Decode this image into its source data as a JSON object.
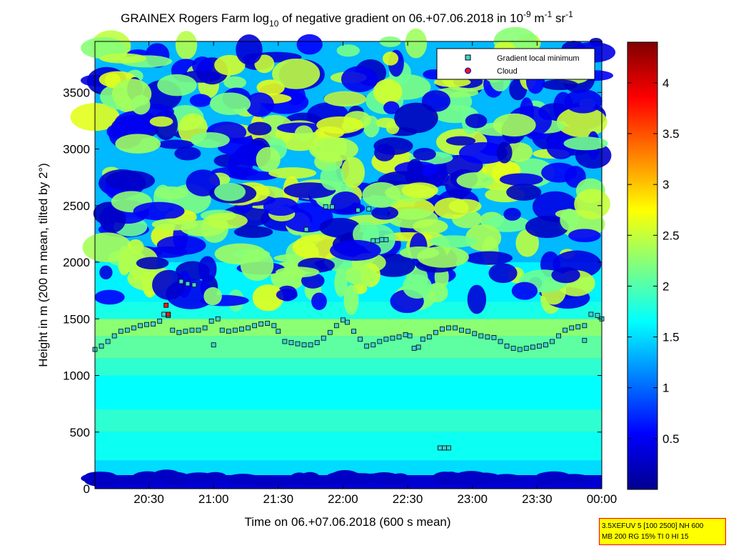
{
  "chart_data": {
    "type": "heatmap",
    "title": {
      "prefix": "GRAINEX Rogers Farm log",
      "sub": "10",
      "mid": " of negative gradient on 06.+07.06.2018 in 10",
      "sup1": "-9",
      "mid2": " m",
      "sup2": "-1",
      "mid3": " sr",
      "sup3": "-1"
    },
    "xlabel": "Time on 06.+07.06.2018 (600 s mean)",
    "ylabel": "Height in m (200 m mean, tilted by 2°)",
    "x_ticks": [
      "20:30",
      "21:00",
      "21:30",
      "22:00",
      "22:30",
      "23:00",
      "23:30",
      "00:00"
    ],
    "x_range_minutes": [
      1205,
      1440
    ],
    "y_ticks": [
      0,
      500,
      1000,
      1500,
      2000,
      2500,
      3000,
      3500
    ],
    "ylim": [
      0,
      3950
    ],
    "colorbar": {
      "colormap": "jet",
      "range": [
        0,
        4.4
      ],
      "ticks": [
        "0.5",
        "1",
        "1.5",
        "2",
        "2.5",
        "3",
        "3.5",
        "4"
      ]
    },
    "legend": {
      "placement": "top-right",
      "entries": [
        {
          "label": "Gradient local minimum",
          "marker": "square",
          "color": "#3fd3d3"
        },
        {
          "label": "Cloud",
          "marker": "circle",
          "color": "#e21a1a"
        }
      ]
    },
    "series": [
      {
        "name": "Gradient local minimum",
        "points": [
          [
            1205,
            1230
          ],
          [
            1208,
            1260
          ],
          [
            1211,
            1300
          ],
          [
            1214,
            1350
          ],
          [
            1217,
            1390
          ],
          [
            1220,
            1400
          ],
          [
            1223,
            1420
          ],
          [
            1226,
            1440
          ],
          [
            1229,
            1450
          ],
          [
            1232,
            1455
          ],
          [
            1235,
            1480
          ],
          [
            1237,
            1540
          ],
          [
            1239,
            1530
          ],
          [
            1241,
            1400
          ],
          [
            1244,
            1380
          ],
          [
            1247,
            1390
          ],
          [
            1250,
            1400
          ],
          [
            1253,
            1400
          ],
          [
            1256,
            1420
          ],
          [
            1259,
            1480
          ],
          [
            1262,
            1500
          ],
          [
            1264,
            1400
          ],
          [
            1267,
            1390
          ],
          [
            1270,
            1400
          ],
          [
            1273,
            1410
          ],
          [
            1276,
            1420
          ],
          [
            1279,
            1440
          ],
          [
            1282,
            1455
          ],
          [
            1285,
            1460
          ],
          [
            1288,
            1440
          ],
          [
            1290,
            1390
          ],
          [
            1293,
            1300
          ],
          [
            1296,
            1290
          ],
          [
            1299,
            1280
          ],
          [
            1302,
            1270
          ],
          [
            1305,
            1270
          ],
          [
            1308,
            1290
          ],
          [
            1311,
            1330
          ],
          [
            1314,
            1380
          ],
          [
            1317,
            1440
          ],
          [
            1320,
            1490
          ],
          [
            1322,
            1470
          ],
          [
            1325,
            1390
          ],
          [
            1328,
            1320
          ],
          [
            1331,
            1260
          ],
          [
            1334,
            1270
          ],
          [
            1337,
            1300
          ],
          [
            1340,
            1320
          ],
          [
            1343,
            1330
          ],
          [
            1346,
            1340
          ],
          [
            1349,
            1360
          ],
          [
            1351,
            1350
          ],
          [
            1353,
            1240
          ],
          [
            1355,
            1250
          ],
          [
            1357,
            1320
          ],
          [
            1360,
            1340
          ],
          [
            1363,
            1380
          ],
          [
            1366,
            1410
          ],
          [
            1369,
            1420
          ],
          [
            1372,
            1420
          ],
          [
            1375,
            1400
          ],
          [
            1378,
            1390
          ],
          [
            1381,
            1370
          ],
          [
            1384,
            1350
          ],
          [
            1387,
            1340
          ],
          [
            1390,
            1335
          ],
          [
            1393,
            1300
          ],
          [
            1396,
            1260
          ],
          [
            1399,
            1240
          ],
          [
            1402,
            1230
          ],
          [
            1405,
            1240
          ],
          [
            1408,
            1250
          ],
          [
            1411,
            1260
          ],
          [
            1414,
            1270
          ],
          [
            1417,
            1300
          ],
          [
            1420,
            1350
          ],
          [
            1423,
            1400
          ],
          [
            1426,
            1420
          ],
          [
            1429,
            1430
          ],
          [
            1432,
            1440
          ],
          [
            1435,
            1540
          ],
          [
            1438,
            1530
          ],
          [
            1440,
            1500
          ],
          [
            1245,
            1830
          ],
          [
            1248,
            1810
          ],
          [
            1251,
            1800
          ],
          [
            1260,
            1270
          ],
          [
            1303,
            2290
          ],
          [
            1312,
            2490
          ],
          [
            1315,
            2490
          ],
          [
            1327,
            2460
          ],
          [
            1332,
            2470
          ],
          [
            1334,
            2190
          ],
          [
            1336,
            2190
          ],
          [
            1338,
            2200
          ],
          [
            1340,
            2200
          ],
          [
            1365,
            360
          ],
          [
            1367,
            360
          ],
          [
            1369,
            360
          ],
          [
            1432,
            1310
          ]
        ]
      },
      {
        "name": "Cloud",
        "points": [
          [
            1238,
            1620
          ],
          [
            1239,
            1540
          ]
        ]
      }
    ]
  }
}
